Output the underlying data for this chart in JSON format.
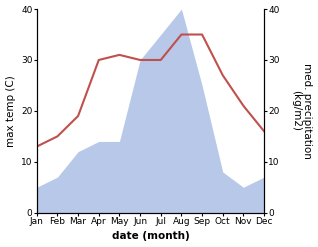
{
  "months": [
    "Jan",
    "Feb",
    "Mar",
    "Apr",
    "May",
    "Jun",
    "Jul",
    "Aug",
    "Sep",
    "Oct",
    "Nov",
    "Dec"
  ],
  "temperature": [
    13,
    15,
    19,
    30,
    31,
    30,
    30,
    35,
    35,
    27,
    21,
    16
  ],
  "precipitation": [
    5,
    7,
    12,
    14,
    14,
    30,
    35,
    40,
    25,
    8,
    5,
    7
  ],
  "temp_color": "#c0504d",
  "precip_fill_color": "#b8c8e8",
  "ylim_left": [
    0,
    40
  ],
  "ylim_right": [
    0,
    40
  ],
  "xlabel": "date (month)",
  "ylabel_left": "max temp (C)",
  "ylabel_right": "med. precipitation\n(kg/m2)",
  "label_fontsize": 7.5,
  "tick_fontsize": 6.5,
  "background_color": "#ffffff",
  "line_width": 1.5
}
